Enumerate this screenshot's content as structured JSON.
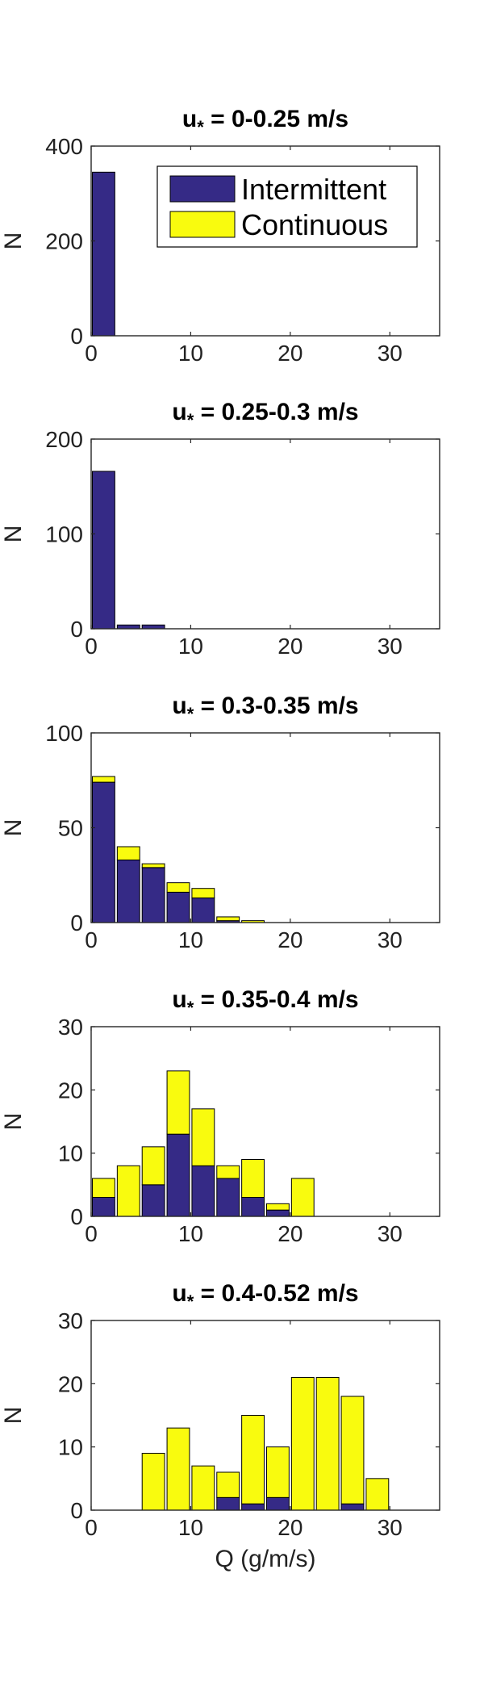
{
  "colors": {
    "intermittent": "#352a86",
    "continuous": "#f9fb0e",
    "axis": "#262626",
    "background": "#ffffff"
  },
  "legend": {
    "placement": "top-right",
    "items": [
      "Intermittent",
      "Continuous"
    ]
  },
  "chart_data": [
    {
      "type": "bar",
      "stacked": true,
      "title_prefix": "u",
      "title_subscript": "*",
      "title_suffix": " = 0-0.25 m/s",
      "xlabel": "",
      "ylabel": "N",
      "xlim": [
        0,
        35
      ],
      "ylim": [
        0,
        400
      ],
      "xticks": [
        0,
        10,
        20,
        30
      ],
      "yticks": [
        0,
        200,
        400
      ],
      "bin_width": 2.5,
      "x": [
        1.25
      ],
      "series": [
        {
          "name": "Intermittent",
          "values": [
            345
          ]
        },
        {
          "name": "Continuous",
          "values": [
            0
          ]
        }
      ]
    },
    {
      "type": "bar",
      "stacked": true,
      "title_prefix": "u",
      "title_subscript": "*",
      "title_suffix": " = 0.25-0.3 m/s",
      "xlabel": "",
      "ylabel": "N",
      "xlim": [
        0,
        35
      ],
      "ylim": [
        0,
        200
      ],
      "xticks": [
        0,
        10,
        20,
        30
      ],
      "yticks": [
        0,
        100,
        200
      ],
      "bin_width": 2.5,
      "x": [
        1.25,
        3.75,
        6.25
      ],
      "series": [
        {
          "name": "Intermittent",
          "values": [
            166,
            4,
            4
          ]
        },
        {
          "name": "Continuous",
          "values": [
            0,
            0,
            0
          ]
        }
      ]
    },
    {
      "type": "bar",
      "stacked": true,
      "title_prefix": "u",
      "title_subscript": "*",
      "title_suffix": " = 0.3-0.35 m/s",
      "xlabel": "",
      "ylabel": "N",
      "xlim": [
        0,
        35
      ],
      "ylim": [
        0,
        100
      ],
      "xticks": [
        0,
        10,
        20,
        30
      ],
      "yticks": [
        0,
        50,
        100
      ],
      "bin_width": 2.5,
      "x": [
        1.25,
        3.75,
        6.25,
        8.75,
        11.25,
        13.75,
        16.25
      ],
      "series": [
        {
          "name": "Intermittent",
          "values": [
            74,
            33,
            29,
            16,
            13,
            1,
            0
          ]
        },
        {
          "name": "Continuous",
          "values": [
            3,
            7,
            2,
            5,
            5,
            2,
            1
          ]
        }
      ]
    },
    {
      "type": "bar",
      "stacked": true,
      "title_prefix": "u",
      "title_subscript": "*",
      "title_suffix": " = 0.35-0.4 m/s",
      "xlabel": "",
      "ylabel": "N",
      "xlim": [
        0,
        35
      ],
      "ylim": [
        0,
        30
      ],
      "xticks": [
        0,
        10,
        20,
        30
      ],
      "yticks": [
        0,
        10,
        20,
        30
      ],
      "bin_width": 2.5,
      "x": [
        1.25,
        3.75,
        6.25,
        8.75,
        11.25,
        13.75,
        16.25,
        18.75,
        21.25
      ],
      "series": [
        {
          "name": "Intermittent",
          "values": [
            3,
            0,
            5,
            13,
            8,
            6,
            3,
            1,
            0
          ]
        },
        {
          "name": "Continuous",
          "values": [
            3,
            8,
            6,
            10,
            9,
            2,
            6,
            1,
            6
          ]
        }
      ]
    },
    {
      "type": "bar",
      "stacked": true,
      "title_prefix": "u",
      "title_subscript": "*",
      "title_suffix": " = 0.4-0.52 m/s",
      "xlabel": "Q (g/m/s)",
      "ylabel": "N",
      "xlim": [
        0,
        35
      ],
      "ylim": [
        0,
        30
      ],
      "xticks": [
        0,
        10,
        20,
        30
      ],
      "yticks": [
        0,
        10,
        20,
        30
      ],
      "bin_width": 2.5,
      "x": [
        6.25,
        8.75,
        11.25,
        13.75,
        16.25,
        18.75,
        21.25,
        23.75,
        26.25,
        28.75
      ],
      "series": [
        {
          "name": "Intermittent",
          "values": [
            0,
            0,
            0,
            2,
            1,
            2,
            0,
            0,
            1,
            0
          ]
        },
        {
          "name": "Continuous",
          "values": [
            9,
            13,
            7,
            4,
            14,
            8,
            21,
            21,
            17,
            5
          ]
        }
      ]
    }
  ]
}
